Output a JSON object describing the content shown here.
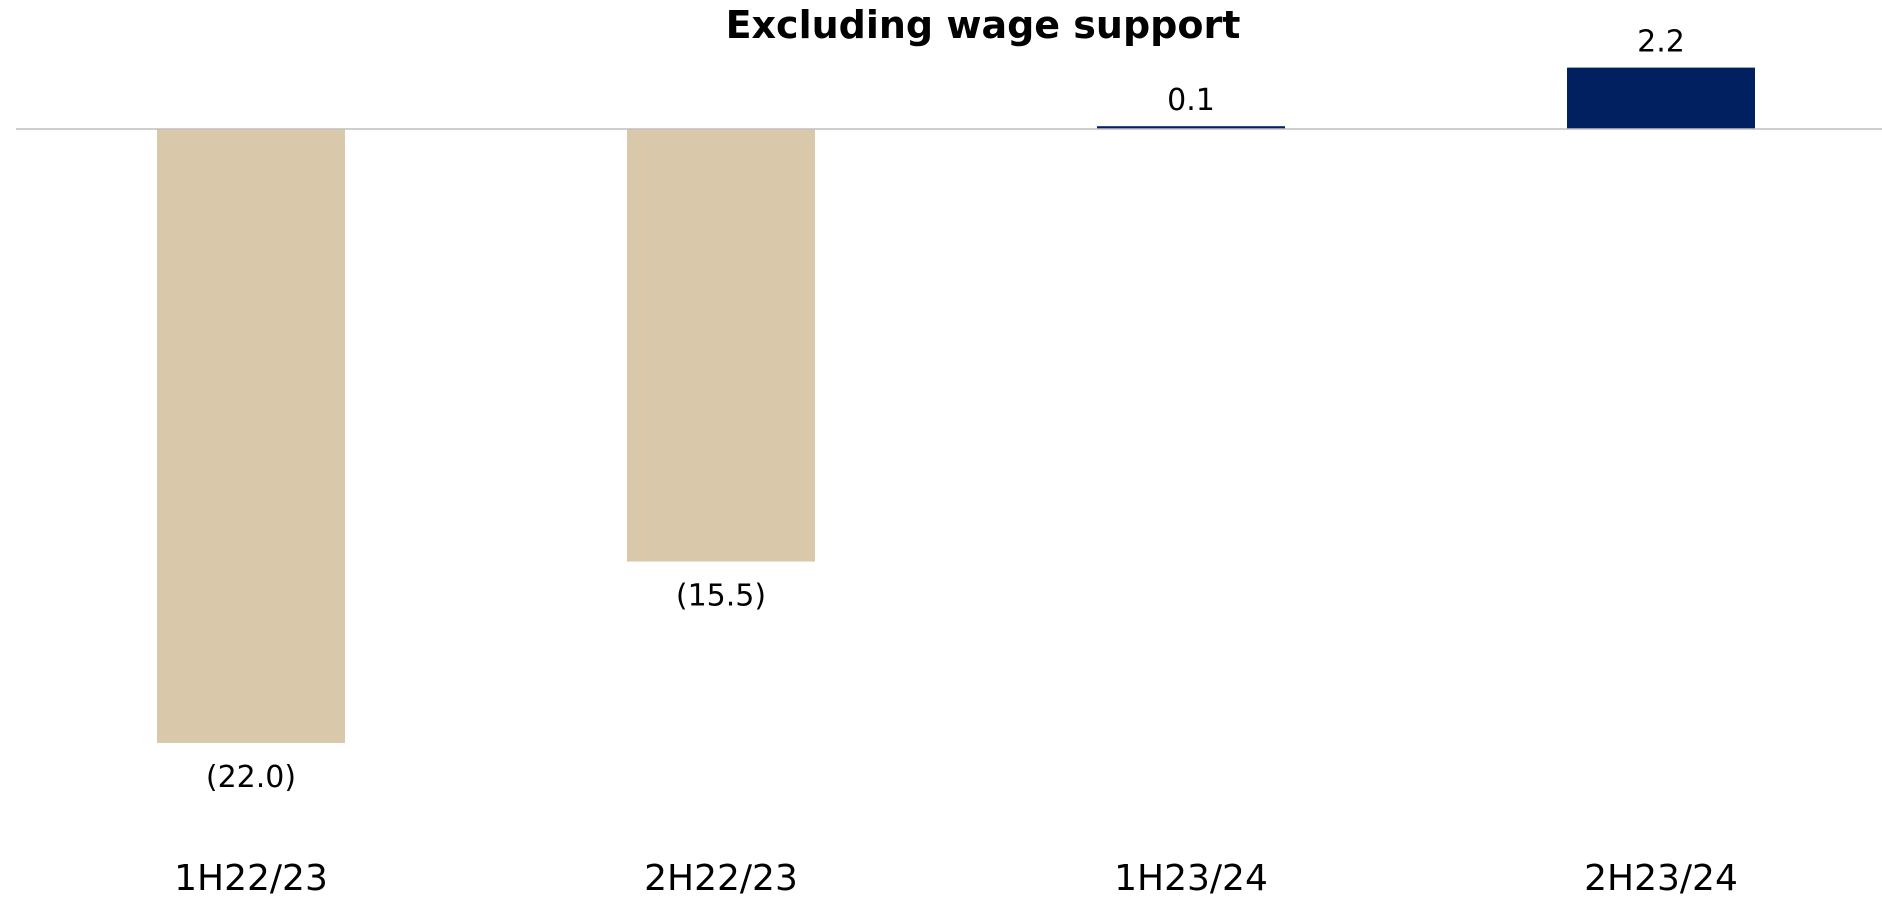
{
  "chart_data": {
    "type": "bar",
    "title": "Excluding wage support",
    "xlabel": "",
    "ylabel": "",
    "categories": [
      "1H22/23",
      "2H22/23",
      "1H23/24",
      "2H23/24"
    ],
    "values": [
      -22.0,
      -15.5,
      0.1,
      2.2
    ],
    "data_labels": [
      "(22.0)",
      "(15.5)",
      "0.1",
      "2.2"
    ],
    "ylim": [
      -24,
      4
    ],
    "grid": false,
    "legend": "none",
    "colors": {
      "negative": "#d9c9aa",
      "positive": "#002060",
      "baseline": "#bfbfbf"
    }
  }
}
